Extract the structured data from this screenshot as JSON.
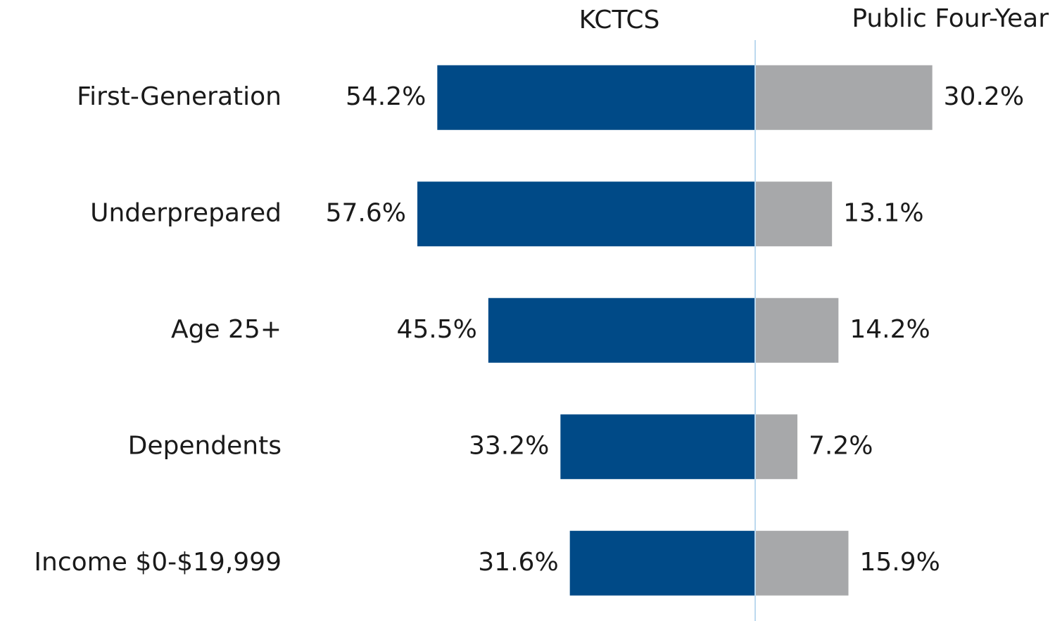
{
  "chart_data": {
    "type": "bar",
    "orientation": "horizontal",
    "categories": [
      "First-Generation",
      "Underprepared",
      "Age 25+",
      "Dependents",
      "Income $0-$19,999"
    ],
    "series": [
      {
        "name": "KCTCS",
        "color": "#004a87",
        "values": [
          54.2,
          57.6,
          45.5,
          33.2,
          31.6
        ],
        "value_labels": [
          "54.2%",
          "57.6%",
          "45.5%",
          "33.2%",
          "31.6%"
        ]
      },
      {
        "name": "Public Four-Year",
        "color": "#a7a8aa",
        "values": [
          30.2,
          13.1,
          14.2,
          7.2,
          15.9
        ],
        "value_labels": [
          "30.2%",
          "13.1%",
          "14.2%",
          "7.2%",
          "15.9%"
        ]
      }
    ],
    "xlim": [
      0,
      60
    ]
  }
}
